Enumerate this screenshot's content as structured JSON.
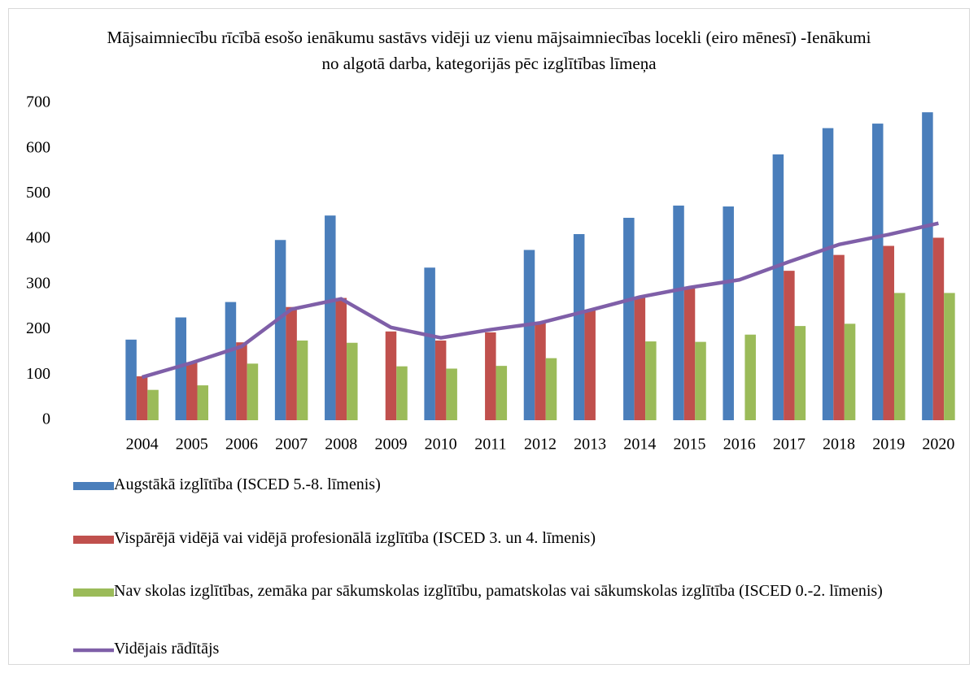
{
  "chart_data": {
    "type": "bar",
    "title": "Mājsaimniecību rīcībā esošo ienākumu sastāvs vidēji uz vienu mājsaimniecības locekli (eiro mēnesī) -Ienākumi no algotā darba, kategorijās pēc izglītības līmeņa",
    "categories": [
      "2004",
      "2005",
      "2006",
      "2007",
      "2008",
      "2009",
      "2010",
      "2011",
      "2012",
      "2013",
      "2014",
      "2015",
      "2016",
      "2017",
      "2018",
      "2019",
      "2020"
    ],
    "series": [
      {
        "name": "Augstākā izglītība (ISCED 5.-8. līmenis)",
        "type": "bar",
        "color": "#4a7ebb",
        "values": [
          178,
          227,
          261,
          398,
          452,
          null,
          337,
          null,
          376,
          411,
          447,
          474,
          472,
          587,
          645,
          655,
          680
        ]
      },
      {
        "name": "Vispārējā vidējā vai vidējā profesionālā izglītība (ISCED 3. un 4. līmenis)",
        "type": "bar",
        "color": "#c0504d",
        "values": [
          97,
          128,
          172,
          250,
          270,
          196,
          176,
          194,
          215,
          243,
          272,
          293,
          null,
          330,
          365,
          385,
          403
        ]
      },
      {
        "name": "Nav skolas izglītības, zemāka par sākumskolas izglītību, pamatskolas vai sākumskolas izglītība (ISCED 0.-2. līmenis)",
        "type": "bar",
        "color": "#9bbb59",
        "values": [
          67,
          77,
          125,
          176,
          171,
          119,
          114,
          120,
          137,
          null,
          174,
          173,
          189,
          208,
          213,
          281,
          281
        ]
      },
      {
        "name": "Vidējais rādītājs",
        "type": "line",
        "color": "#7f5fa8",
        "values": [
          95,
          127,
          163,
          245,
          268,
          205,
          182,
          200,
          215,
          243,
          272,
          293,
          310,
          350,
          388,
          410,
          435
        ]
      }
    ],
    "ylim": [
      0,
      700
    ],
    "yticks": [
      0,
      100,
      200,
      300,
      400,
      500,
      600,
      700
    ],
    "grid": false
  }
}
